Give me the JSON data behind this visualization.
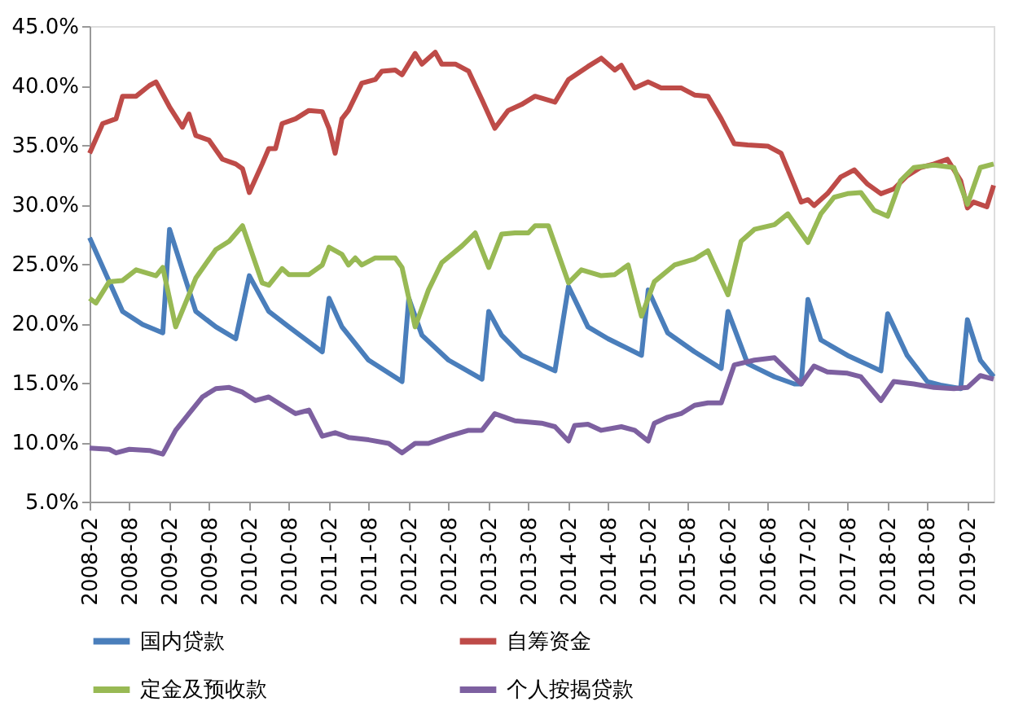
{
  "chart_data": {
    "type": "line",
    "xlim": [
      "2008-02",
      "2019-06"
    ],
    "xticks": [
      "2008-02",
      "2008-08",
      "2009-02",
      "2009-08",
      "2010-02",
      "2010-08",
      "2011-02",
      "2011-08",
      "2012-02",
      "2012-08",
      "2013-02",
      "2013-08",
      "2014-02",
      "2014-08",
      "2015-02",
      "2015-08",
      "2016-02",
      "2016-08",
      "2017-02",
      "2017-08",
      "2018-02",
      "2018-08",
      "2019-02"
    ],
    "ylim": [
      5,
      45
    ],
    "yticks": [
      {
        "value": 5,
        "label": "5.0%"
      },
      {
        "value": 10,
        "label": "10.0%"
      },
      {
        "value": 15,
        "label": "15.0%"
      },
      {
        "value": 20,
        "label": "20.0%"
      },
      {
        "value": 25,
        "label": "25.0%"
      },
      {
        "value": 30,
        "label": "30.0%"
      },
      {
        "value": 35,
        "label": "35.0%"
      },
      {
        "value": 40,
        "label": "40.0%"
      },
      {
        "value": 45,
        "label": "45.0%"
      }
    ],
    "grid": false,
    "legend": "bottom",
    "line_style": "solid",
    "marker": "none",
    "series": [
      {
        "name": "国内贷款",
        "color": "#4a7ebb",
        "x": [
          "2008-02",
          "2008-07",
          "2008-10",
          "2009-01",
          "2009-02",
          "2009-04",
          "2009-06",
          "2009-09",
          "2009-12",
          "2010-02",
          "2010-05",
          "2010-08",
          "2011-01",
          "2011-02",
          "2011-04",
          "2011-08",
          "2012-01",
          "2012-02",
          "2012-04",
          "2012-08",
          "2013-01",
          "2013-02",
          "2013-04",
          "2013-07",
          "2013-12",
          "2014-02",
          "2014-05",
          "2014-08",
          "2015-01",
          "2015-02",
          "2015-05",
          "2015-09",
          "2016-01",
          "2016-02",
          "2016-05",
          "2016-09",
          "2016-12",
          "2017-01",
          "2017-02",
          "2017-04",
          "2017-08",
          "2018-01",
          "2018-02",
          "2018-05",
          "2018-08",
          "2018-10",
          "2019-01",
          "2019-02",
          "2019-04",
          "2019-06"
        ],
        "values": [
          27.2,
          21,
          19.9,
          19.2,
          27.9,
          24.5,
          21,
          19.7,
          18.7,
          24.0,
          21,
          19.7,
          17.6,
          22.1,
          19.7,
          16.9,
          15.1,
          22.1,
          19,
          16.9,
          15.3,
          21.0,
          19,
          17.3,
          16.0,
          23.1,
          19.7,
          18.7,
          17.3,
          22.8,
          19.2,
          17.6,
          16.2,
          21.0,
          16.6,
          15.5,
          14.9,
          14.9,
          22.0,
          18.6,
          17.3,
          16.0,
          20.8,
          17.3,
          15.1,
          14.8,
          14.5,
          20.3,
          16.9,
          15.5
        ]
      },
      {
        "name": "自筹资金",
        "color": "#be4b48",
        "x": [
          "2008-02",
          "2008-04",
          "2008-06",
          "2008-07",
          "2008-09",
          "2008-11",
          "2008-12",
          "2009-02",
          "2009-04",
          "2009-05",
          "2009-06",
          "2009-08",
          "2009-10",
          "2009-12",
          "2010-01",
          "2010-02",
          "2010-04",
          "2010-05",
          "2010-06",
          "2010-07",
          "2010-09",
          "2010-11",
          "2011-01",
          "2011-02",
          "2011-03",
          "2011-04",
          "2011-05",
          "2011-07",
          "2011-09",
          "2011-10",
          "2011-12",
          "2012-01",
          "2012-03",
          "2012-04",
          "2012-06",
          "2012-07",
          "2012-09",
          "2012-11",
          "2013-01",
          "2013-03",
          "2013-05",
          "2013-07",
          "2013-09",
          "2013-12",
          "2014-02",
          "2014-05",
          "2014-07",
          "2014-09",
          "2014-10",
          "2014-12",
          "2015-02",
          "2015-04",
          "2015-07",
          "2015-09",
          "2015-11",
          "2016-01",
          "2016-03",
          "2016-05",
          "2016-08",
          "2016-10",
          "2016-12",
          "2017-01",
          "2017-02",
          "2017-03",
          "2017-05",
          "2017-07",
          "2017-09",
          "2017-11",
          "2018-01",
          "2018-03",
          "2018-05",
          "2018-07",
          "2018-09",
          "2018-11",
          "2019-01",
          "2019-02",
          "2019-03",
          "2019-05",
          "2019-06"
        ],
        "values": [
          34.3,
          36.8,
          37.2,
          39.1,
          39.1,
          40.0,
          40.3,
          38.2,
          36.5,
          37.6,
          35.8,
          35.4,
          33.8,
          33.4,
          33.0,
          31.0,
          33.4,
          34.7,
          34.7,
          36.8,
          37.2,
          37.9,
          37.8,
          36.4,
          34.3,
          37.2,
          37.9,
          40.2,
          40.5,
          41.2,
          41.3,
          40.9,
          42.7,
          41.8,
          42.8,
          41.8,
          41.8,
          41.2,
          38.8,
          36.4,
          37.9,
          38.4,
          39.1,
          38.6,
          40.5,
          41.6,
          42.3,
          41.3,
          41.7,
          39.8,
          40.3,
          39.8,
          39.8,
          39.2,
          39.1,
          37.2,
          35.1,
          35.0,
          34.9,
          34.3,
          31.6,
          30.2,
          30.4,
          29.9,
          30.9,
          32.3,
          32.9,
          31.7,
          30.9,
          31.3,
          32.4,
          33.1,
          33.4,
          33.8,
          32.0,
          29.7,
          30.2,
          29.8,
          31.6
        ]
      },
      {
        "name": "定金及预收款",
        "color": "#98b954",
        "x": [
          "2008-02",
          "2008-03",
          "2008-05",
          "2008-07",
          "2008-09",
          "2008-12",
          "2009-01",
          "2009-03",
          "2009-06",
          "2009-09",
          "2009-11",
          "2010-01",
          "2010-04",
          "2010-05",
          "2010-07",
          "2010-08",
          "2010-11",
          "2011-01",
          "2011-02",
          "2011-04",
          "2011-05",
          "2011-06",
          "2011-07",
          "2011-09",
          "2011-12",
          "2012-01",
          "2012-03",
          "2012-05",
          "2012-07",
          "2012-10",
          "2012-12",
          "2013-02",
          "2013-04",
          "2013-06",
          "2013-08",
          "2013-09",
          "2013-11",
          "2014-02",
          "2014-04",
          "2014-07",
          "2014-09",
          "2014-11",
          "2015-01",
          "2015-03",
          "2015-06",
          "2015-09",
          "2015-11",
          "2016-02",
          "2016-04",
          "2016-06",
          "2016-09",
          "2016-11",
          "2017-02",
          "2017-04",
          "2017-06",
          "2017-08",
          "2017-10",
          "2017-12",
          "2018-02",
          "2018-04",
          "2018-06",
          "2018-09",
          "2018-12",
          "2019-02",
          "2019-04",
          "2019-06"
        ],
        "values": [
          22.1,
          21.7,
          23.5,
          23.6,
          24.5,
          24.0,
          24.7,
          19.7,
          23.8,
          26.2,
          26.9,
          28.2,
          23.4,
          23.2,
          24.6,
          24.1,
          24.1,
          24.9,
          26.4,
          25.8,
          24.9,
          25.5,
          24.9,
          25.5,
          25.5,
          24.7,
          19.7,
          22.8,
          25.1,
          26.5,
          27.6,
          24.7,
          27.5,
          27.6,
          27.6,
          28.2,
          28.2,
          23.4,
          24.5,
          24.0,
          24.1,
          24.9,
          20.6,
          23.5,
          24.9,
          25.4,
          26.1,
          22.4,
          26.9,
          27.9,
          28.3,
          29.2,
          26.8,
          29.2,
          30.6,
          30.9,
          31.0,
          29.5,
          29.0,
          32.0,
          33.1,
          33.3,
          33.1,
          30.0,
          33.1,
          33.4
        ]
      },
      {
        "name": "个人按揭贷款",
        "color": "#7d60a0",
        "x": [
          "2008-02",
          "2008-05",
          "2008-06",
          "2008-08",
          "2008-11",
          "2009-01",
          "2009-03",
          "2009-05",
          "2009-07",
          "2009-09",
          "2009-11",
          "2010-01",
          "2010-03",
          "2010-05",
          "2010-07",
          "2010-09",
          "2010-11",
          "2011-01",
          "2011-03",
          "2011-05",
          "2011-08",
          "2011-11",
          "2012-01",
          "2012-03",
          "2012-05",
          "2012-08",
          "2012-11",
          "2013-01",
          "2013-03",
          "2013-05",
          "2013-06",
          "2013-10",
          "2013-12",
          "2014-02",
          "2014-03",
          "2014-05",
          "2014-07",
          "2014-10",
          "2014-12",
          "2015-02",
          "2015-03",
          "2015-05",
          "2015-07",
          "2015-09",
          "2015-11",
          "2016-01",
          "2016-03",
          "2016-06",
          "2016-09",
          "2017-01",
          "2017-03",
          "2017-05",
          "2017-08",
          "2017-10",
          "2018-01",
          "2018-03",
          "2018-06",
          "2018-09",
          "2018-12",
          "2019-02",
          "2019-04",
          "2019-06"
        ],
        "values": [
          9.5,
          9.4,
          9.1,
          9.4,
          9.3,
          9.0,
          11.0,
          12.4,
          13.8,
          14.5,
          14.6,
          14.2,
          13.5,
          13.8,
          13.1,
          12.4,
          12.7,
          10.5,
          10.8,
          10.4,
          10.2,
          9.9,
          9.1,
          9.9,
          9.9,
          10.5,
          11.0,
          11.0,
          12.4,
          12.0,
          11.8,
          11.6,
          11.3,
          10.1,
          11.4,
          11.5,
          11.0,
          11.3,
          11.0,
          10.1,
          11.6,
          12.1,
          12.4,
          13.1,
          13.3,
          13.3,
          16.5,
          16.9,
          17.1,
          14.9,
          16.4,
          15.9,
          15.8,
          15.5,
          13.5,
          15.1,
          14.9,
          14.6,
          14.5,
          14.6,
          15.6,
          15.3
        ]
      }
    ]
  }
}
